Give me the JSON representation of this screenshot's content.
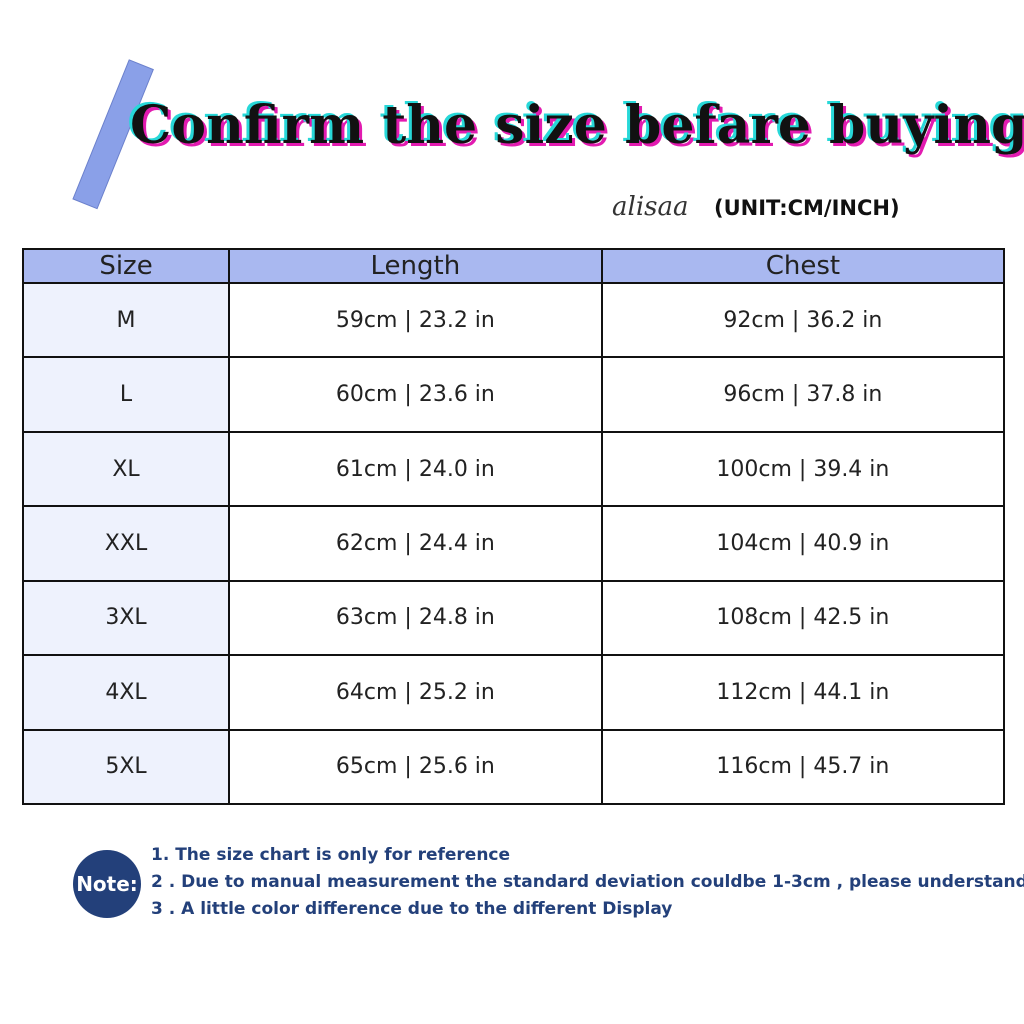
{
  "header": {
    "title": "Confirm the size befare buying",
    "brand": "alisaa",
    "unit": "(UNIT:CM/INCH)"
  },
  "table": {
    "headers": [
      "Size",
      "Length",
      "Chest"
    ],
    "rows": [
      [
        "M",
        "59cm | 23.2 in",
        "92cm | 36.2 in"
      ],
      [
        "L",
        "60cm | 23.6 in",
        "96cm | 37.8 in"
      ],
      [
        "XL",
        "61cm | 24.0 in",
        "100cm | 39.4 in"
      ],
      [
        "XXL",
        "62cm | 24.4 in",
        "104cm | 40.9 in"
      ],
      [
        "3XL",
        "63cm | 24.8 in",
        "108cm | 42.5 in"
      ],
      [
        "4XL",
        "64cm | 25.2 in",
        "112cm | 44.1 in"
      ],
      [
        "5XL",
        "65cm | 25.6 in",
        "116cm | 45.7 in"
      ]
    ]
  },
  "note": {
    "label": "Note:",
    "items": [
      "1. The size chart is only for reference",
      "2 . Due to manual measurement the standard deviation couldbe 1-3cm , please understand",
      "3 . A little color difference due to the different Display"
    ]
  }
}
